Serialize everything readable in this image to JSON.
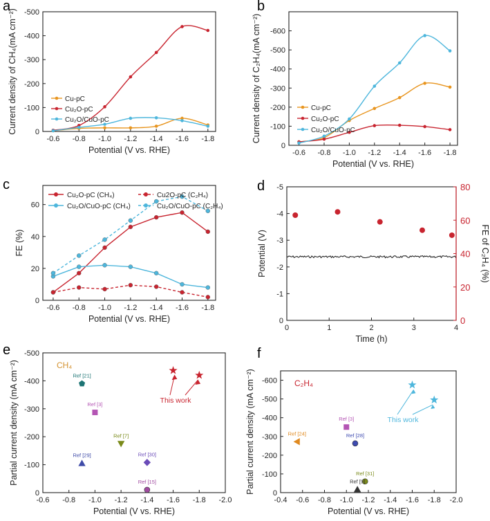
{
  "panel_letters": [
    "a",
    "b",
    "c",
    "d",
    "e",
    "f"
  ],
  "colors": {
    "orange": "#e8951f",
    "red": "#c8242f",
    "cyan": "#4db6dc",
    "black": "#111111",
    "ref21": "#1d7474",
    "ref3": "#b455b4",
    "ref7": "#7a8a1a",
    "ref29": "#3f4ba8",
    "ref30": "#6a4bb8",
    "ref15": "#a04aa0",
    "ref24": "#e08a20",
    "ref28": "#3e4bb0",
    "ref31": "#7a8a1a",
    "ref9": "#333333"
  },
  "chart_data": [
    {
      "panel": "a",
      "type": "line",
      "xlabel": "Potential (V vs. RHE)",
      "ylabel": "Current density of CH₄(mA cm⁻²)",
      "x": [
        -0.6,
        -0.8,
        -1.0,
        -1.2,
        -1.4,
        -1.6,
        -1.8
      ],
      "xticks": [
        "-0.6",
        "-0.8",
        "-1.0",
        "-1.2",
        "-1.4",
        "-1.6",
        "-1.8"
      ],
      "xlim": [
        -0.52,
        -1.86
      ],
      "ylim": [
        0,
        -500
      ],
      "yticks": [
        "0",
        "-100",
        "-200",
        "-300",
        "-400",
        "-500"
      ],
      "series": [
        {
          "name": "Cu-pC",
          "color_key": "orange",
          "values": [
            -3,
            -13,
            -15,
            -15,
            -22,
            -55,
            -27
          ]
        },
        {
          "name": "Cu₂O-pC",
          "color_key": "red",
          "values": [
            -5,
            -25,
            -103,
            -228,
            -330,
            -438,
            -422
          ]
        },
        {
          "name": "Cu₂O/CuO-pC",
          "color_key": "cyan",
          "values": [
            -3,
            -17,
            -30,
            -55,
            -57,
            -45,
            -22
          ]
        }
      ],
      "legend": "bottom-left"
    },
    {
      "panel": "b",
      "type": "line",
      "xlabel": "Potential (V vs. RHE)",
      "ylabel": "Current density of C₂H₄(mA cm⁻²)",
      "x": [
        -0.6,
        -0.8,
        -1.0,
        -1.2,
        -1.4,
        -1.6,
        -1.8
      ],
      "xticks": [
        "-0.6",
        "-0.8",
        "-1.0",
        "-1.2",
        "-1.4",
        "-1.6",
        "-1.8"
      ],
      "xlim": [
        -0.52,
        -1.86
      ],
      "ylim": [
        0,
        -700
      ],
      "yticks": [
        "0",
        "-100",
        "-200",
        "-300",
        "-400",
        "-500",
        "-600"
      ],
      "series": [
        {
          "name": "Cu-pC",
          "color_key": "orange",
          "values": [
            -18,
            -40,
            -130,
            -193,
            -250,
            -325,
            -305
          ]
        },
        {
          "name": "Cu₂O-pC",
          "color_key": "red",
          "values": [
            -18,
            -32,
            -68,
            -103,
            -105,
            -98,
            -82
          ]
        },
        {
          "name": "Cu₂O/CuO-pC",
          "color_key": "cyan",
          "values": [
            -12,
            -48,
            -138,
            -310,
            -432,
            -575,
            -495
          ]
        }
      ],
      "legend": "bottom-left"
    },
    {
      "panel": "c",
      "type": "line",
      "xlabel": "Potential (V vs. RHE)",
      "ylabel": "FE (%)",
      "x": [
        -0.6,
        -0.8,
        -1.0,
        -1.2,
        -1.4,
        -1.6,
        -1.8
      ],
      "xticks": [
        "-0.6",
        "-0.8",
        "-1.0",
        "-1.2",
        "-1.4",
        "-1.6",
        "-1.8"
      ],
      "xlim": [
        -0.52,
        -1.86
      ],
      "ylim": [
        0,
        72
      ],
      "yticks": [
        "0",
        "20",
        "40",
        "60"
      ],
      "series": [
        {
          "name": "Cu₂O-pC (CH₄)",
          "color_key": "red",
          "dashed": false,
          "values": [
            5,
            17,
            33,
            46,
            52,
            55,
            43
          ]
        },
        {
          "name": "Cu2O-pC (C₂H₄)",
          "color_key": "red",
          "dashed": true,
          "values": [
            5,
            8,
            7,
            9.5,
            8.5,
            5,
            2
          ]
        },
        {
          "name": "Cu₂O/CuO-pC (CH₄)",
          "color_key": "cyan",
          "dashed": false,
          "values": [
            15,
            21,
            22,
            21,
            17,
            10,
            8
          ]
        },
        {
          "name": "Cu₂O/CuO-pC (C₂H₄)",
          "color_key": "cyan",
          "dashed": true,
          "values": [
            17,
            28,
            38,
            50,
            62,
            65,
            56
          ]
        }
      ],
      "legend": "top"
    },
    {
      "panel": "d",
      "type": "scatter",
      "xlabel": "Time (h)",
      "ylabel": "Potential (V)",
      "ylabel_right": "FE of C₂H₄ (%)",
      "xlim": [
        0,
        4
      ],
      "xticks": [
        "0",
        "1",
        "2",
        "3",
        "4"
      ],
      "ylim": [
        0,
        -5
      ],
      "yticks": [
        "0",
        "-1",
        "-2",
        "-3",
        "-4",
        "-5"
      ],
      "ylim_right": [
        0,
        80
      ],
      "yticks_right": [
        "0",
        "20",
        "40",
        "60",
        "80"
      ],
      "potential_level": -2.38,
      "fe_points": {
        "x": [
          0.2,
          1.2,
          2.2,
          3.2,
          3.9
        ],
        "values": [
          63,
          65,
          59,
          54,
          51
        ]
      }
    },
    {
      "panel": "e",
      "type": "scatter",
      "title": "CH₄",
      "xlabel": "Potential (V vs. RHE)",
      "ylabel": "Partial current density (mA cm⁻²)",
      "xlim": [
        -0.6,
        -2.0
      ],
      "xticks": [
        "-0.6",
        "-0.8",
        "-1.0",
        "-1.2",
        "-1.4",
        "-1.6",
        "-1.8",
        "-2.0"
      ],
      "ylim": [
        0,
        -500
      ],
      "yticks": [
        "0",
        "-100",
        "-200",
        "-300",
        "-400",
        "-500"
      ],
      "points": [
        {
          "label": "Ref [21]",
          "x": -0.9,
          "y": -390,
          "shape": "pentagon",
          "color_key": "ref21"
        },
        {
          "label": "Ref [3]",
          "x": -1.0,
          "y": -287,
          "shape": "square",
          "color_key": "ref3"
        },
        {
          "label": "Ref [7]",
          "x": -1.2,
          "y": -175,
          "shape": "triangle-down",
          "color_key": "ref7"
        },
        {
          "label": "Ref [29]",
          "x": -0.9,
          "y": -105,
          "shape": "triangle-up",
          "color_key": "ref29"
        },
        {
          "label": "Ref [30]",
          "x": -1.4,
          "y": -108,
          "shape": "diamond",
          "color_key": "ref30"
        },
        {
          "label": "Ref [15]",
          "x": -1.4,
          "y": -10,
          "shape": "circle",
          "color_key": "ref15"
        },
        {
          "label": "This work",
          "x": -1.6,
          "y": -437,
          "shape": "star",
          "color_key": "red"
        },
        {
          "label": "This work",
          "x": -1.8,
          "y": -420,
          "shape": "star",
          "color_key": "red"
        }
      ],
      "annotation": "This work"
    },
    {
      "panel": "f",
      "type": "scatter",
      "title": "C₂H₄",
      "xlabel": "Potential (V vs. RHE)",
      "ylabel": "Partial current density (mA cm⁻²)",
      "xlim": [
        -0.4,
        -2.0
      ],
      "xticks": [
        "-0.4",
        "-0.6",
        "-0.8",
        "-1.0",
        "-1.2",
        "-1.4",
        "-1.6",
        "-1.8",
        "-2.0"
      ],
      "ylim": [
        0,
        -650
      ],
      "yticks": [
        "0",
        "-100",
        "-200",
        "-300",
        "-400",
        "-500",
        "-600"
      ],
      "points": [
        {
          "label": "Ref [24]",
          "x": -0.55,
          "y": -272,
          "shape": "triangle-left",
          "color_key": "ref24"
        },
        {
          "label": "Ref [3]",
          "x": -1.0,
          "y": -350,
          "shape": "square",
          "color_key": "ref3"
        },
        {
          "label": "Ref [28]",
          "x": -1.08,
          "y": -263,
          "shape": "circle",
          "color_key": "ref28"
        },
        {
          "label": "Ref [31]",
          "x": -1.17,
          "y": -60,
          "shape": "circle",
          "color_key": "ref31"
        },
        {
          "label": "Ref [9]",
          "x": -1.1,
          "y": -17,
          "shape": "triangle-up",
          "color_key": "ref9"
        },
        {
          "label": "This work",
          "x": -1.6,
          "y": -575,
          "shape": "star",
          "color_key": "cyan"
        },
        {
          "label": "This work",
          "x": -1.8,
          "y": -495,
          "shape": "star",
          "color_key": "cyan"
        }
      ],
      "annotation": "This work"
    }
  ]
}
